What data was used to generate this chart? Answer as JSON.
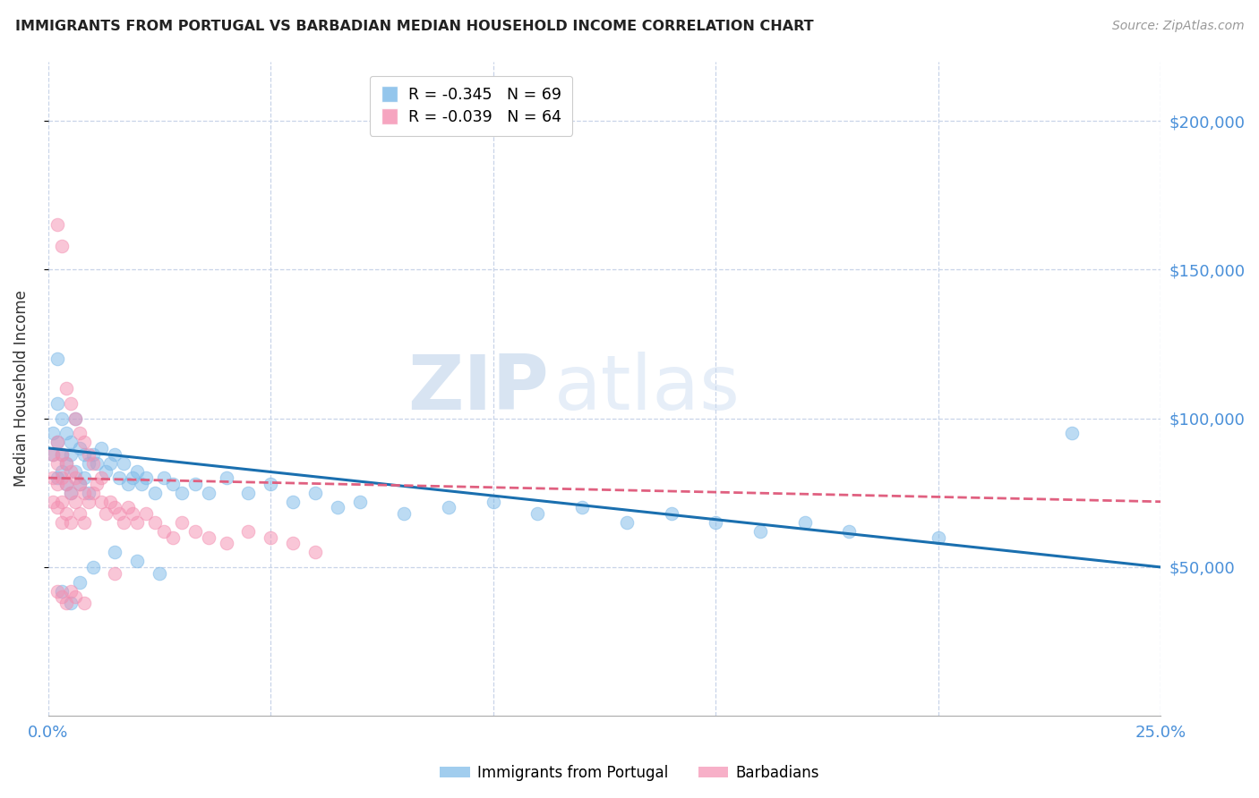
{
  "title": "IMMIGRANTS FROM PORTUGAL VS BARBADIAN MEDIAN HOUSEHOLD INCOME CORRELATION CHART",
  "source": "Source: ZipAtlas.com",
  "ylabel": "Median Household Income",
  "watermark_zip": "ZIP",
  "watermark_atlas": "atlas",
  "legend_blue_r": "R = -0.345",
  "legend_blue_n": "N = 69",
  "legend_pink_r": "R = -0.039",
  "legend_pink_n": "N = 64",
  "blue_color": "#7ab8e8",
  "pink_color": "#f48fb1",
  "line_blue": "#1a6faf",
  "line_pink": "#e06080",
  "right_axis_color": "#4a90d9",
  "ylim": [
    0,
    220000
  ],
  "xlim": [
    0,
    0.25
  ],
  "yticks": [
    50000,
    100000,
    150000,
    200000
  ],
  "xticks": [
    0.0,
    0.05,
    0.1,
    0.15,
    0.2,
    0.25
  ],
  "blue_x": [
    0.001,
    0.001,
    0.002,
    0.002,
    0.002,
    0.003,
    0.003,
    0.003,
    0.004,
    0.004,
    0.004,
    0.005,
    0.005,
    0.005,
    0.006,
    0.006,
    0.007,
    0.007,
    0.008,
    0.008,
    0.009,
    0.009,
    0.01,
    0.011,
    0.012,
    0.013,
    0.014,
    0.015,
    0.016,
    0.017,
    0.018,
    0.019,
    0.02,
    0.021,
    0.022,
    0.024,
    0.026,
    0.028,
    0.03,
    0.033,
    0.036,
    0.04,
    0.045,
    0.05,
    0.055,
    0.06,
    0.065,
    0.07,
    0.08,
    0.09,
    0.1,
    0.11,
    0.12,
    0.13,
    0.14,
    0.15,
    0.16,
    0.17,
    0.18,
    0.2,
    0.003,
    0.005,
    0.007,
    0.01,
    0.015,
    0.02,
    0.025,
    0.23,
    0.002
  ],
  "blue_y": [
    95000,
    88000,
    105000,
    92000,
    80000,
    100000,
    88000,
    82000,
    95000,
    85000,
    78000,
    92000,
    88000,
    75000,
    100000,
    82000,
    90000,
    78000,
    88000,
    80000,
    85000,
    75000,
    88000,
    85000,
    90000,
    82000,
    85000,
    88000,
    80000,
    85000,
    78000,
    80000,
    82000,
    78000,
    80000,
    75000,
    80000,
    78000,
    75000,
    78000,
    75000,
    80000,
    75000,
    78000,
    72000,
    75000,
    70000,
    72000,
    68000,
    70000,
    72000,
    68000,
    70000,
    65000,
    68000,
    65000,
    62000,
    65000,
    62000,
    60000,
    42000,
    38000,
    45000,
    50000,
    55000,
    52000,
    48000,
    95000,
    120000
  ],
  "pink_x": [
    0.001,
    0.001,
    0.001,
    0.002,
    0.002,
    0.002,
    0.002,
    0.003,
    0.003,
    0.003,
    0.003,
    0.004,
    0.004,
    0.004,
    0.005,
    0.005,
    0.005,
    0.006,
    0.006,
    0.007,
    0.007,
    0.008,
    0.008,
    0.009,
    0.01,
    0.011,
    0.012,
    0.013,
    0.014,
    0.015,
    0.016,
    0.017,
    0.018,
    0.019,
    0.02,
    0.022,
    0.024,
    0.026,
    0.028,
    0.03,
    0.033,
    0.036,
    0.04,
    0.045,
    0.05,
    0.055,
    0.06,
    0.002,
    0.003,
    0.004,
    0.005,
    0.006,
    0.008,
    0.002,
    0.003,
    0.004,
    0.005,
    0.006,
    0.007,
    0.008,
    0.009,
    0.01,
    0.012,
    0.015
  ],
  "pink_y": [
    88000,
    80000,
    72000,
    92000,
    85000,
    78000,
    70000,
    88000,
    80000,
    72000,
    65000,
    85000,
    78000,
    68000,
    82000,
    75000,
    65000,
    80000,
    72000,
    78000,
    68000,
    75000,
    65000,
    72000,
    75000,
    78000,
    72000,
    68000,
    72000,
    70000,
    68000,
    65000,
    70000,
    68000,
    65000,
    68000,
    65000,
    62000,
    60000,
    65000,
    62000,
    60000,
    58000,
    62000,
    60000,
    58000,
    55000,
    42000,
    40000,
    38000,
    42000,
    40000,
    38000,
    165000,
    158000,
    110000,
    105000,
    100000,
    95000,
    92000,
    88000,
    85000,
    80000,
    48000
  ]
}
